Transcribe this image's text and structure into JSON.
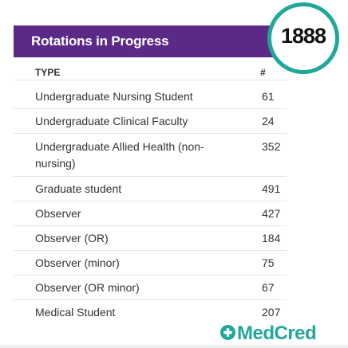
{
  "card": {
    "title": "Rotations in Progress",
    "columns": {
      "type": "TYPE",
      "count": "#"
    },
    "rows": [
      {
        "type": "Undergraduate Nursing Student",
        "count": "61"
      },
      {
        "type": "Undergraduate Clinical Faculty",
        "count": "24"
      },
      {
        "type": "Undergraduate Allied Health (non-nursing)",
        "count": "352"
      },
      {
        "type": "Graduate student",
        "count": "491"
      },
      {
        "type": "Observer",
        "count": "427"
      },
      {
        "type": "Observer (OR)",
        "count": "184"
      },
      {
        "type": "Observer (minor)",
        "count": "75"
      },
      {
        "type": "Observer (OR minor)",
        "count": "67"
      },
      {
        "type": "Medical Student",
        "count": "207"
      }
    ]
  },
  "badge": {
    "number": "1888"
  },
  "brand": {
    "name": "MedCred",
    "icon": "plus-circle-icon"
  },
  "colors": {
    "header": "#5b2a86",
    "accent": "#1fa89a"
  }
}
